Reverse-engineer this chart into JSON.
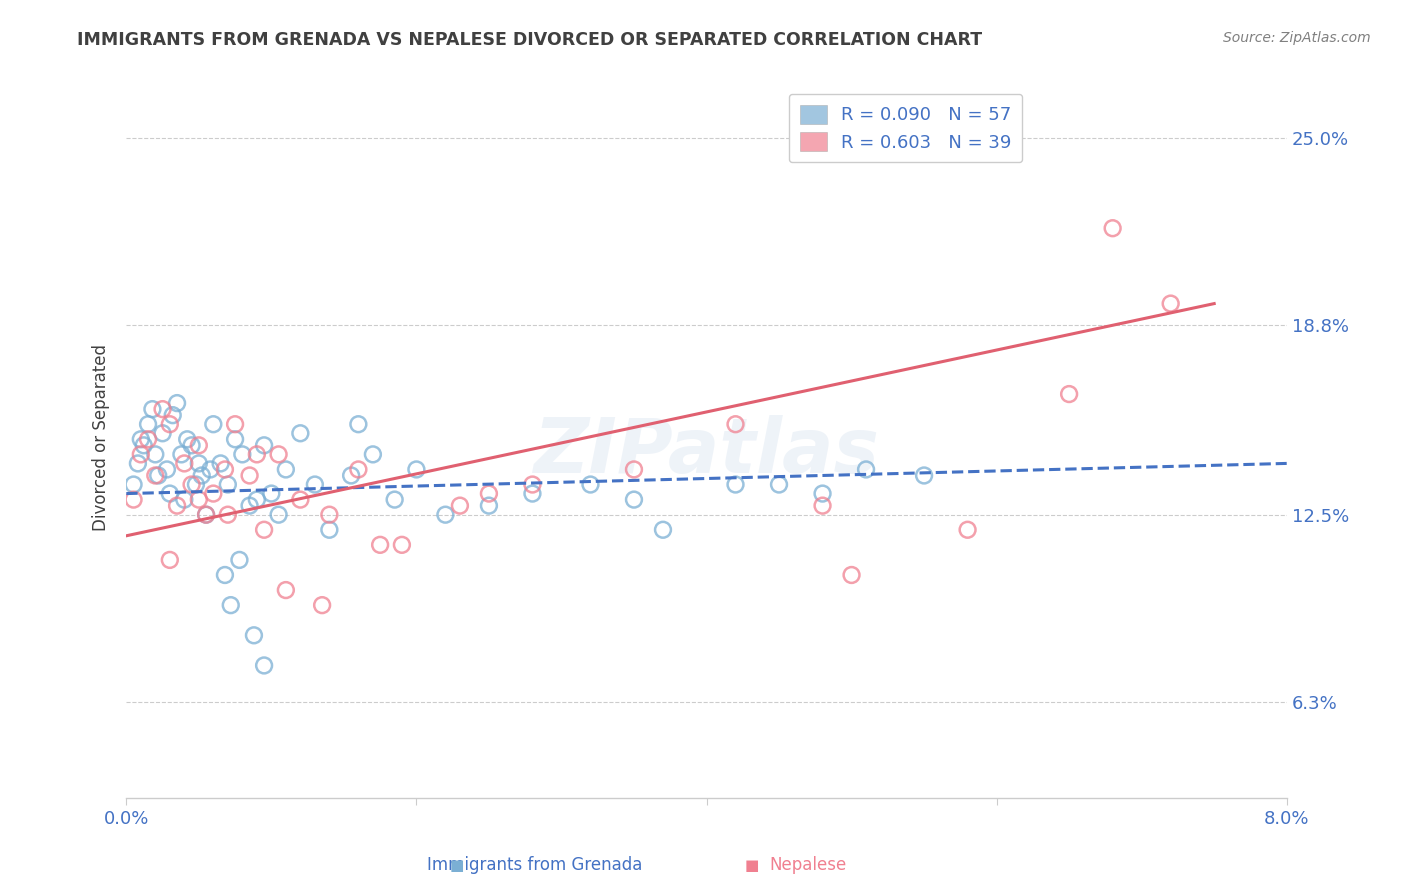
{
  "title": "IMMIGRANTS FROM GRENADA VS NEPALESE DIVORCED OR SEPARATED CORRELATION CHART",
  "source": "Source: ZipAtlas.com",
  "ylabel": "Divorced or Separated",
  "xlim": [
    0.0,
    8.0
  ],
  "ylim": [
    3.1,
    27.0
  ],
  "xtick_positions": [
    0.0,
    2.0,
    4.0,
    6.0,
    8.0
  ],
  "xtick_labels": [
    "0.0%",
    "",
    "",
    "",
    "8.0%"
  ],
  "ytick_labels": [
    "6.3%",
    "12.5%",
    "18.8%",
    "25.0%"
  ],
  "ytick_values": [
    6.3,
    12.5,
    18.8,
    25.0
  ],
  "blue_color": "#7bafd4",
  "pink_color": "#f08090",
  "blue_line_color": "#4472c4",
  "pink_line_color": "#e06070",
  "watermark": "ZIPatlas",
  "blue_scatter_x": [
    0.05,
    0.08,
    0.1,
    0.12,
    0.15,
    0.18,
    0.2,
    0.22,
    0.25,
    0.28,
    0.3,
    0.32,
    0.35,
    0.38,
    0.4,
    0.42,
    0.45,
    0.48,
    0.5,
    0.52,
    0.55,
    0.58,
    0.6,
    0.65,
    0.7,
    0.75,
    0.8,
    0.85,
    0.9,
    0.95,
    1.0,
    1.05,
    1.1,
    1.2,
    1.3,
    1.4,
    1.55,
    1.7,
    1.85,
    2.0,
    2.2,
    2.5,
    2.8,
    3.2,
    3.7,
    4.2,
    4.8,
    5.1,
    5.5,
    1.6,
    0.68,
    0.72,
    0.78,
    0.88,
    0.95,
    3.5,
    4.5
  ],
  "blue_scatter_y": [
    13.5,
    14.2,
    15.0,
    14.8,
    15.5,
    16.0,
    14.5,
    13.8,
    15.2,
    14.0,
    13.2,
    15.8,
    16.2,
    14.5,
    13.0,
    15.0,
    14.8,
    13.5,
    14.2,
    13.8,
    12.5,
    14.0,
    15.5,
    14.2,
    13.5,
    15.0,
    14.5,
    12.8,
    13.0,
    14.8,
    13.2,
    12.5,
    14.0,
    15.2,
    13.5,
    12.0,
    13.8,
    14.5,
    13.0,
    14.0,
    12.5,
    12.8,
    13.2,
    13.5,
    12.0,
    13.5,
    13.2,
    14.0,
    13.8,
    15.5,
    10.5,
    9.5,
    11.0,
    8.5,
    7.5,
    13.0,
    13.5
  ],
  "pink_scatter_x": [
    0.05,
    0.1,
    0.15,
    0.2,
    0.25,
    0.3,
    0.35,
    0.4,
    0.45,
    0.5,
    0.55,
    0.6,
    0.68,
    0.75,
    0.85,
    0.95,
    1.05,
    1.2,
    1.4,
    1.6,
    1.9,
    2.3,
    2.8,
    3.5,
    4.2,
    5.0,
    5.8,
    6.5,
    0.3,
    0.5,
    0.7,
    0.9,
    1.1,
    1.35,
    1.75,
    2.5,
    4.8,
    7.2,
    6.8
  ],
  "pink_scatter_y": [
    13.0,
    14.5,
    15.0,
    13.8,
    16.0,
    15.5,
    12.8,
    14.2,
    13.5,
    14.8,
    12.5,
    13.2,
    14.0,
    15.5,
    13.8,
    12.0,
    14.5,
    13.0,
    12.5,
    14.0,
    11.5,
    12.8,
    13.5,
    14.0,
    15.5,
    10.5,
    12.0,
    16.5,
    11.0,
    13.0,
    12.5,
    14.5,
    10.0,
    9.5,
    11.5,
    13.2,
    12.8,
    19.5,
    22.0
  ],
  "blue_line_x0": 0.0,
  "blue_line_x1": 8.0,
  "blue_line_y0": 13.2,
  "blue_line_y1": 14.2,
  "pink_line_x0": 0.0,
  "pink_line_x1": 7.5,
  "pink_line_y0": 11.8,
  "pink_line_y1": 19.5,
  "grid_color": "#cccccc",
  "label_color": "#4472c4",
  "title_color": "#404040",
  "source_color": "#808080",
  "legend_label_blue": "R = 0.090   N = 57",
  "legend_label_pink": "R = 0.603   N = 39",
  "bottom_legend_blue": "Immigrants from Grenada",
  "bottom_legend_pink": "Nepalese"
}
